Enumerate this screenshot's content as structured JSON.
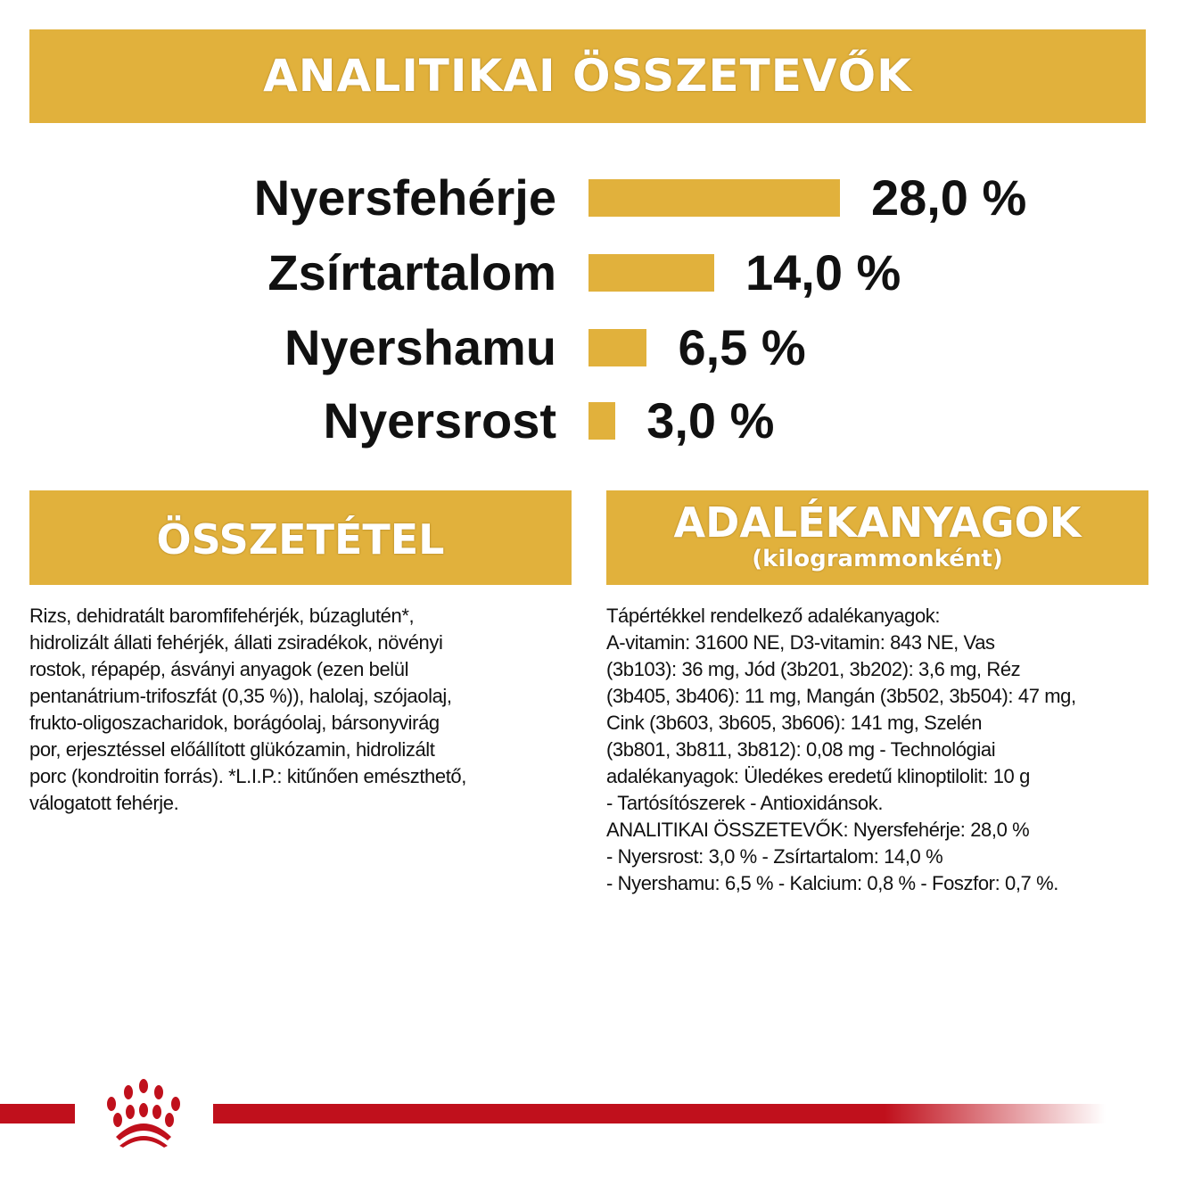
{
  "header": {
    "title": "ANALITIKAI ÖSSZETEVŐK"
  },
  "chart_data": {
    "type": "bar",
    "orientation": "horizontal",
    "categories": [
      "Nyersfehérje",
      "Zsírtartalom",
      "Nyershamu",
      "Nyersrost"
    ],
    "values": [
      28.0,
      14.0,
      6.5,
      3.0
    ],
    "value_labels": [
      "28,0 %",
      "14,0 %",
      "6,5 %",
      "3,0 %"
    ],
    "bar_color": "#E1B13C"
  },
  "composition": {
    "title": "ÖSSZETÉTEL",
    "lines": [
      "Rizs, dehidratált baromfifehérjék, búzaglutén*,",
      "hidrolizált állati fehérjék, állati zsiradékok, növényi",
      "rostok, répapép, ásványi anyagok (ezen belül",
      "pentanátrium-trifoszfát (0,35 %)), halolaj, szójaolaj,",
      "frukto-oligoszacharidok, borágóolaj, bársonyvirág",
      "por, erjesztéssel előállított glükózamin, hidrolizált",
      "porc (kondroitin forrás). *L.I.P.: kitűnően emészthető,",
      "válogatott fehérje."
    ]
  },
  "additives": {
    "title": "ADALÉKANYAGOK",
    "subtitle": "(kilogrammonként)",
    "lines": [
      "Tápértékkel rendelkező adalékanyagok:",
      "A-vitamin: 31600 NE, D3-vitamin: 843 NE, Vas",
      "(3b103): 36 mg, Jód (3b201, 3b202): 3,6 mg, Réz",
      "(3b405, 3b406): 11 mg, Mangán (3b502, 3b504): 47 mg,",
      "Cink (3b603, 3b605, 3b606): 141 mg, Szelén",
      "(3b801, 3b811, 3b812): 0,08 mg - Technológiai",
      "adalékanyagok: Üledékes eredetű klinoptilolit: 10 g",
      "- Tartósítószerek - Antioxidánsok.",
      "ANALITIKAI ÖSSZETEVŐK: Nyersfehérje: 28,0 %",
      "- Nyersrost: 3,0 % - Zsírtartalom: 14,0 %",
      "- Nyershamu: 6,5 % - Kalcium: 0,8 % - Foszfor: 0,7 %."
    ]
  },
  "footer": {
    "logo": "crown-logo",
    "line_color": "#C0101C"
  }
}
